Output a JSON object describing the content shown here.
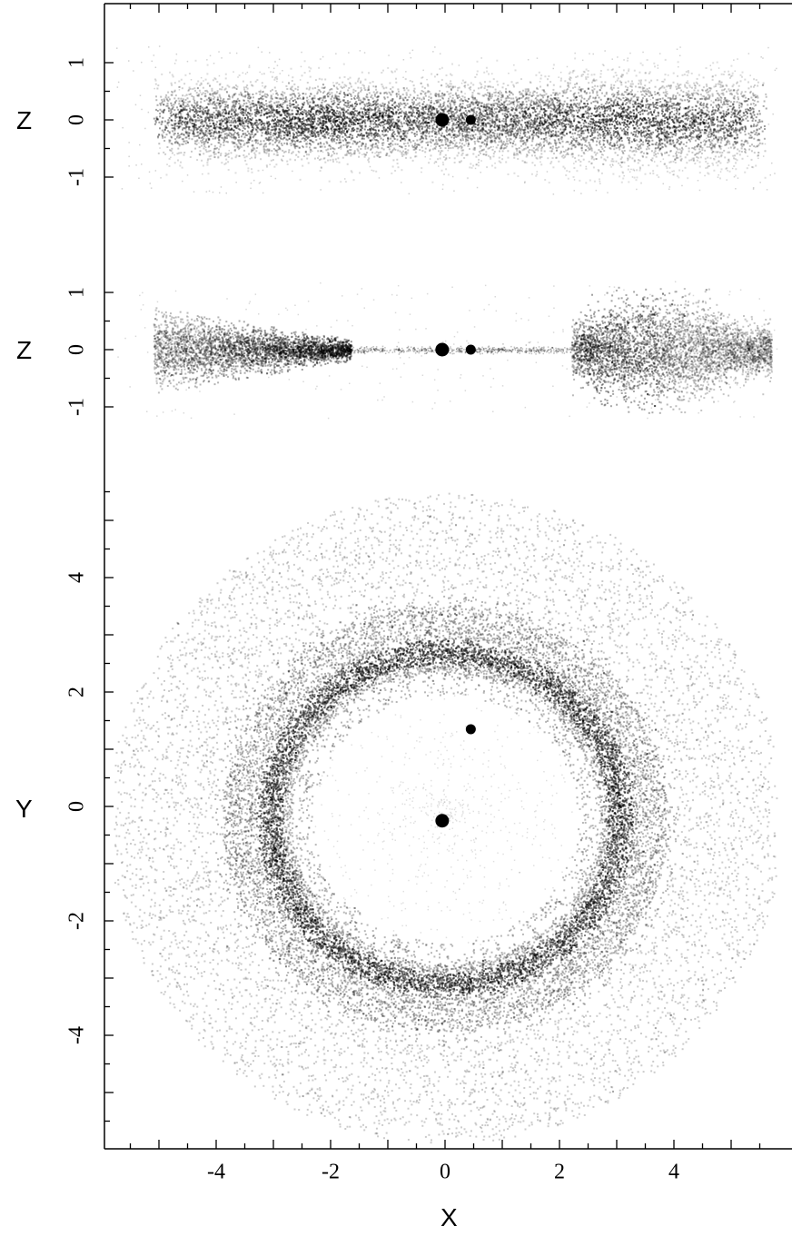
{
  "chart_data": {
    "type": "scatter",
    "xlabel": "X",
    "xticks": [
      "-4",
      "-2",
      "0",
      "2",
      "4"
    ],
    "xlim": [
      -5.9,
      5.9
    ],
    "grid": false,
    "panels": [
      {
        "name": "edge-on view",
        "ylabel": "Z",
        "yticks": [
          "1",
          "0",
          "-1"
        ],
        "ylim": [
          -1.4,
          1.3
        ],
        "point_color": "#000000",
        "description_density": "uniform thick disk spanning X from -5 to 5.6, Z about -0.8 to 0.8",
        "bodies": [
          {
            "x": -0.05,
            "y": 0.0,
            "size": "large"
          },
          {
            "x": 0.45,
            "y": 0.0,
            "size": "small"
          }
        ]
      },
      {
        "name": "edge-on view with inner cavity",
        "ylabel": "Z",
        "yticks": [
          "1",
          "0",
          "-1"
        ],
        "ylim": [
          -1.4,
          1.3
        ],
        "point_color": "#000000",
        "description_density": "two lobes: left X -5 to -1.7, right X 2.2 to 5.6; thin midplane line in between",
        "bodies": [
          {
            "x": -0.05,
            "y": 0.0,
            "size": "large"
          },
          {
            "x": 0.45,
            "y": 0.0,
            "size": "small"
          }
        ]
      },
      {
        "name": "face-on view",
        "ylabel": "Y",
        "yticks": [
          "4",
          "2",
          "0",
          "-2",
          "-4"
        ],
        "ylim": [
          -5.9,
          5.9
        ],
        "point_color": "#000000",
        "description_density": "annulus centered near (0,0) with inner hole radius ~1.9, bright rim ~2.8-3.1, outer edge ~5.5",
        "bodies": [
          {
            "x": -0.05,
            "y": -0.25,
            "size": "large"
          },
          {
            "x": 0.45,
            "y": 1.35,
            "size": "small"
          }
        ]
      }
    ]
  }
}
